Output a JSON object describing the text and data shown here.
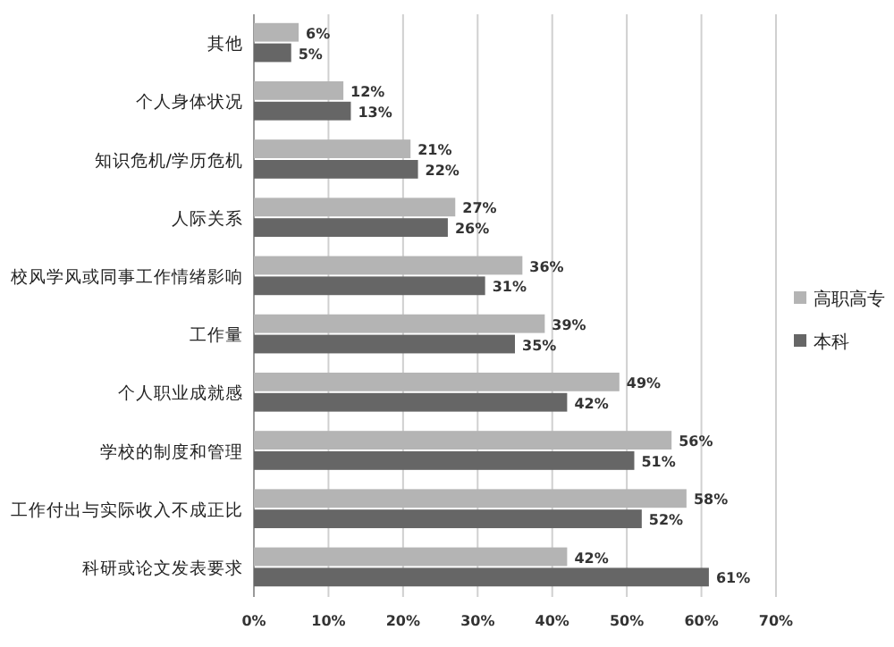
{
  "chart_data": {
    "type": "bar",
    "orientation": "horizontal",
    "categories": [
      "其他",
      "个人身体状况",
      "知识危机/学历危机",
      "人际关系",
      "校风学风或同事工作情绪影响",
      "工作量",
      "个人职业成就感",
      "学校的制度和管理",
      "工作付出与实际收入不成正比",
      "科研或论文发表要求"
    ],
    "series": [
      {
        "name": "高职高专",
        "color": "#b4b4b4",
        "values": [
          6,
          12,
          21,
          27,
          36,
          39,
          49,
          56,
          58,
          42
        ],
        "value_labels": [
          "6%",
          "12%",
          "21%",
          "27%",
          "36%",
          "39%",
          "49%",
          "56%",
          "58%",
          "42%"
        ]
      },
      {
        "name": "本科",
        "color": "#666666",
        "values": [
          5,
          13,
          22,
          26,
          31,
          35,
          42,
          51,
          52,
          61
        ],
        "value_labels": [
          "5%",
          "13%",
          "22%",
          "26%",
          "31%",
          "35%",
          "42%",
          "51%",
          "52%",
          "61%"
        ]
      }
    ],
    "xlim": [
      0,
      70
    ],
    "xticks": [
      {
        "value": 0,
        "label": "0%"
      },
      {
        "value": 10,
        "label": "10%"
      },
      {
        "value": 20,
        "label": "20%"
      },
      {
        "value": 30,
        "label": "30%"
      },
      {
        "value": 40,
        "label": "40%"
      },
      {
        "value": 50,
        "label": "50%"
      },
      {
        "value": 60,
        "label": "60%"
      },
      {
        "value": 70,
        "label": "70%"
      }
    ],
    "grid": "x",
    "legend": "right"
  }
}
